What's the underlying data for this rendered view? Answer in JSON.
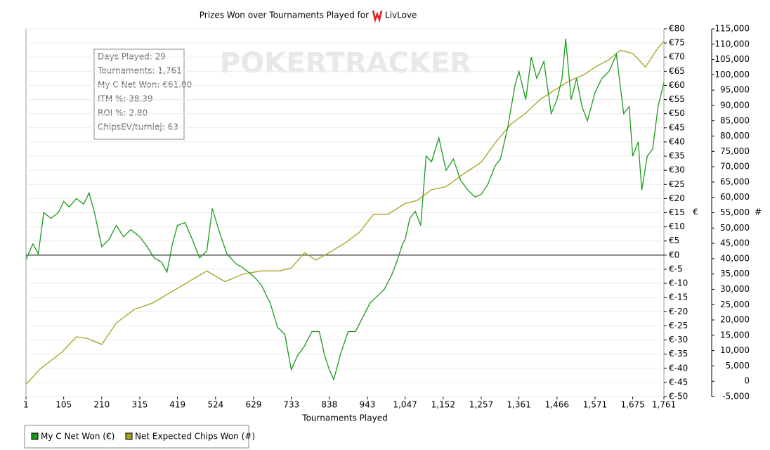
{
  "chart_data": {
    "type": "line",
    "title": "Prizes Won over Tournaments Played for",
    "player": "LivLove",
    "watermark": "POKERTRACKER",
    "xlabel": "Tournaments Played",
    "ylabel": "€",
    "y2label": "#",
    "stats": [
      "Days Played: 29",
      "Tournaments: 1,761",
      "My C Net Won: €61.00",
      "ITM %: 38.39",
      "ROI %: 2.80",
      "ChipsEV/turniej: 63"
    ],
    "grid": true,
    "xlim": [
      1,
      1761
    ],
    "xticks": [
      1,
      105,
      210,
      315,
      419,
      524,
      629,
      733,
      838,
      943,
      {
        "value": 1047,
        "label": "1,047"
      },
      {
        "value": 1152,
        "label": "1,152"
      },
      {
        "value": 1257,
        "label": "1,257"
      },
      {
        "value": 1361,
        "label": "1,361"
      },
      {
        "value": 1466,
        "label": "1,466"
      },
      {
        "value": 1571,
        "label": "1,571"
      },
      {
        "value": 1675,
        "label": "1,675"
      },
      {
        "value": 1761,
        "label": "1,761"
      }
    ],
    "ylim": [
      -50,
      80
    ],
    "yticks": [
      {
        "value": 80,
        "label": "€80"
      },
      {
        "value": 75,
        "label": "€75"
      },
      {
        "value": 70,
        "label": "€70"
      },
      {
        "value": 65,
        "label": "€65"
      },
      {
        "value": 60,
        "label": "€60"
      },
      {
        "value": 55,
        "label": "€55"
      },
      {
        "value": 50,
        "label": "€50"
      },
      {
        "value": 45,
        "label": "€45"
      },
      {
        "value": 40,
        "label": "€40"
      },
      {
        "value": 35,
        "label": "€35"
      },
      {
        "value": 30,
        "label": "€30"
      },
      {
        "value": 25,
        "label": "€25"
      },
      {
        "value": 20,
        "label": "€20"
      },
      {
        "value": 15,
        "label": "€15"
      },
      {
        "value": 10,
        "label": "€10"
      },
      {
        "value": 5,
        "label": "€5"
      },
      {
        "value": 0,
        "label": "€0"
      },
      {
        "value": -5,
        "label": "€-5"
      },
      {
        "value": -10,
        "label": "€-10"
      },
      {
        "value": -15,
        "label": "€-15"
      },
      {
        "value": -20,
        "label": "€-20"
      },
      {
        "value": -25,
        "label": "€-25"
      },
      {
        "value": -30,
        "label": "€-30"
      },
      {
        "value": -35,
        "label": "€-35"
      },
      {
        "value": -40,
        "label": "€-40"
      },
      {
        "value": -45,
        "label": "€-45"
      },
      {
        "value": -50,
        "label": "€-50"
      }
    ],
    "y2lim": [
      -5000,
      115000
    ],
    "y2ticks": [
      {
        "value": 115000,
        "label": "115,000"
      },
      {
        "value": 110000,
        "label": "110,000"
      },
      {
        "value": 105000,
        "label": "105,000"
      },
      {
        "value": 100000,
        "label": "100,000"
      },
      {
        "value": 95000,
        "label": "95,000"
      },
      {
        "value": 90000,
        "label": "90,000"
      },
      {
        "value": 85000,
        "label": "85,000"
      },
      {
        "value": 80000,
        "label": "80,000"
      },
      {
        "value": 75000,
        "label": "75,000"
      },
      {
        "value": 70000,
        "label": "70,000"
      },
      {
        "value": 65000,
        "label": "65,000"
      },
      {
        "value": 60000,
        "label": "60,000"
      },
      {
        "value": 55000,
        "label": "55,000"
      },
      {
        "value": 50000,
        "label": "50,000"
      },
      {
        "value": 45000,
        "label": "45,000"
      },
      {
        "value": 40000,
        "label": "40,000"
      },
      {
        "value": 35000,
        "label": "35,000"
      },
      {
        "value": 30000,
        "label": "30,000"
      },
      {
        "value": 25000,
        "label": "25,000"
      },
      {
        "value": 20000,
        "label": "20,000"
      },
      {
        "value": 15000,
        "label": "15,000"
      },
      {
        "value": 10000,
        "label": "10,000"
      },
      {
        "value": 5000,
        "label": "5,000"
      },
      0,
      {
        "value": -5000,
        "label": "-5,000"
      }
    ],
    "series": [
      {
        "name": "My C Net Won (€)",
        "color": "#1a9a1a",
        "x": [
          1,
          20,
          35,
          50,
          70,
          90,
          105,
          120,
          140,
          160,
          175,
          190,
          210,
          230,
          250,
          270,
          290,
          315,
          335,
          355,
          375,
          390,
          405,
          419,
          440,
          460,
          480,
          500,
          515,
          535,
          555,
          580,
          600,
          629,
          650,
          675,
          695,
          715,
          733,
          750,
          770,
          790,
          810,
          825,
          838,
          850,
          870,
          890,
          910,
          930,
          950,
          970,
          990,
          1010,
          1025,
          1040,
          1047,
          1060,
          1075,
          1090,
          1105,
          1120,
          1140,
          1160,
          1180,
          1200,
          1220,
          1240,
          1257,
          1275,
          1295,
          1310,
          1330,
          1350,
          1361,
          1380,
          1395,
          1410,
          1430,
          1450,
          1466,
          1480,
          1490,
          1505,
          1520,
          1535,
          1550,
          1571,
          1590,
          1610,
          1630,
          1650,
          1665,
          1675,
          1690,
          1700,
          1715,
          1730,
          1745,
          1761
        ],
        "values": [
          -1.5,
          4,
          0.5,
          15,
          13,
          15,
          19,
          17,
          20,
          18,
          22,
          15,
          3,
          5.5,
          10.5,
          6.5,
          9,
          6.5,
          3,
          -1,
          -2.5,
          -6,
          4,
          10.5,
          11.5,
          5.5,
          -1,
          1.5,
          16.5,
          8,
          0.5,
          -3,
          -4.5,
          -7.5,
          -10.5,
          -17,
          -25.5,
          -28,
          -40.5,
          -35.5,
          -32,
          -27,
          -27,
          -35.5,
          -40.5,
          -44,
          -34.5,
          -27,
          -27,
          -22,
          -17,
          -14.5,
          -12,
          -7,
          -2,
          4,
          5.5,
          13,
          15.5,
          10.5,
          35,
          33,
          41.5,
          30,
          34,
          26.5,
          23,
          20.5,
          21.5,
          25,
          31.5,
          34,
          45,
          60,
          65,
          55,
          70,
          62.5,
          68.5,
          50,
          55,
          62.5,
          76.5,
          55,
          62.5,
          52.5,
          47.5,
          57.5,
          62.5,
          65,
          71,
          50,
          52.5,
          35,
          40,
          23,
          35,
          37.5,
          52.5,
          61
        ]
      },
      {
        "name": "Net Expected Chips Won (#)",
        "color": "#a8a020",
        "axis": "y2",
        "x": [
          1,
          40,
          100,
          140,
          170,
          210,
          250,
          300,
          350,
          400,
          450,
          500,
          550,
          600,
          650,
          700,
          733,
          770,
          800,
          838,
          880,
          920,
          960,
          1000,
          1047,
          1080,
          1120,
          1160,
          1200,
          1257,
          1300,
          1340,
          1380,
          1420,
          1466,
          1500,
          1540,
          1571,
          1610,
          1640,
          1675,
          1710,
          1740,
          1761
        ],
        "values": [
          -1000,
          4000,
          9500,
          14500,
          14000,
          12000,
          19000,
          23500,
          25500,
          29000,
          32500,
          36000,
          32500,
          35000,
          36000,
          36000,
          37000,
          42000,
          39500,
          42000,
          45000,
          48500,
          54500,
          54500,
          58000,
          59000,
          62500,
          63500,
          67000,
          71500,
          78500,
          84000,
          87500,
          92000,
          95500,
          98000,
          100000,
          102500,
          105000,
          108000,
          107000,
          102500,
          108000,
          111000
        ]
      }
    ]
  }
}
